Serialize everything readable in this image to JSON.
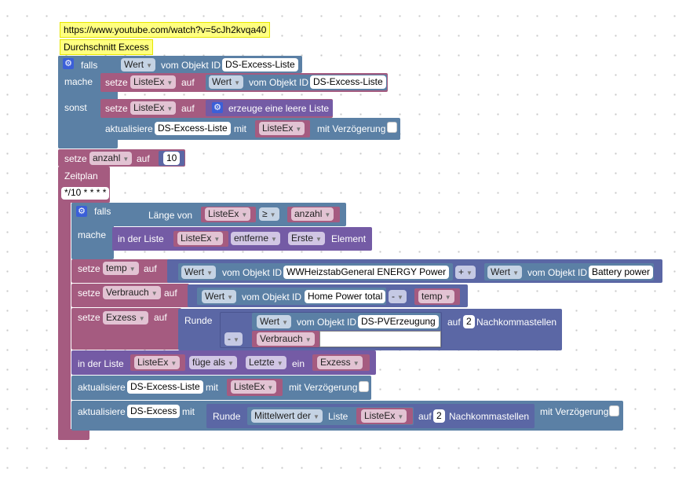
{
  "comments": {
    "url": "https://www.youtube.com/watch?v=5cJh2kvqa40",
    "title": "Durchschnitt Excess"
  },
  "kw": {
    "falls": "falls",
    "mache": "mache",
    "sonst": "sonst",
    "setze": "setze",
    "auf": "auf",
    "mit": "mit",
    "aktualisiere": "aktualisiere",
    "mit_verzoegerung": "mit Verzögerung",
    "vom_objekt_id": "vom Objekt ID",
    "wert": "Wert",
    "zeitplan": "Zeitplan",
    "runde": "Runde",
    "nachkommastellen": "Nachkommastellen",
    "in_der_liste": "in der Liste",
    "element": "Element",
    "ein": "ein",
    "laenge_von": "Länge von",
    "erzeuge_leere_liste": "erzeuge eine leere Liste"
  },
  "vars": {
    "liste_ex": "ListeEx",
    "anzahl": "anzahl",
    "temp": "temp",
    "verbrauch": "Verbrauch",
    "exzess": "Exzess",
    "excess": "Excess"
  },
  "ids": {
    "ds_excess_liste": "DS-Excess-Liste",
    "ds_excess": "DS-Excess",
    "ww_heizstab": "WWHeizstabGeneral ENERGY  Power",
    "battery_power": "Battery power",
    "home_power_total": "Home Power total",
    "ds_pv": "DS-PVErzeugung"
  },
  "values": {
    "anzahl_num": "10",
    "cron": "*/10 * * * *",
    "decimals": "2"
  },
  "ops": {
    "gte": "≥",
    "plus": "+",
    "minus": "-",
    "entferne": "entferne",
    "erste": "Erste",
    "fuege_als": "füge als",
    "letzte": "Letzte",
    "mittelwert": "Mittelwert der",
    "liste": "Liste"
  }
}
